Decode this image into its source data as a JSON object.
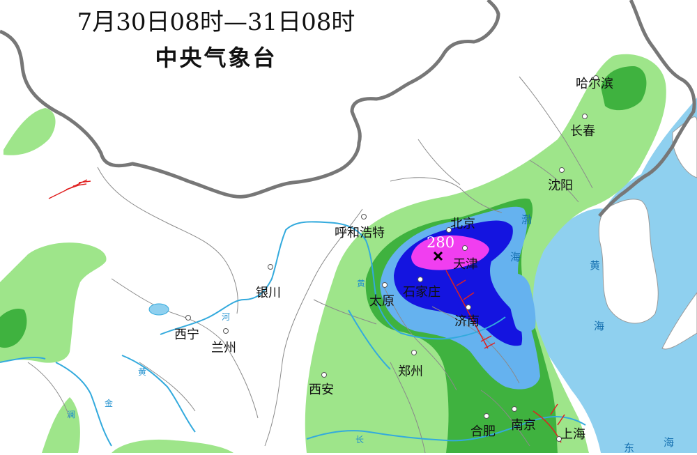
{
  "header": {
    "period": "7月30日08时—31日08时",
    "issuer": "中央气象台"
  },
  "max_value": "280",
  "cities": [
    {
      "name": "哈尔滨"
    },
    {
      "name": "长春"
    },
    {
      "name": "沈阳"
    },
    {
      "name": "北京"
    },
    {
      "name": "天津"
    },
    {
      "name": "呼和浩特"
    },
    {
      "name": "石家庄"
    },
    {
      "name": "太原"
    },
    {
      "name": "济南"
    },
    {
      "name": "银川"
    },
    {
      "name": "西宁"
    },
    {
      "name": "兰州"
    },
    {
      "name": "郑州"
    },
    {
      "name": "西安"
    },
    {
      "name": "合肥"
    },
    {
      "name": "南京"
    },
    {
      "name": "上海"
    }
  ],
  "sea_labels": [
    "渤",
    "海",
    "黄",
    "海",
    "东",
    "海"
  ],
  "river_labels": [
    "黄",
    "河",
    "黄",
    "金",
    "澜",
    "长"
  ],
  "colors": {
    "light_green": "#9ee58a",
    "green": "#3fb23f",
    "light_blue": "#65b2ef",
    "blue": "#1414e0",
    "magenta": "#f13ef0",
    "sea": "#8fd0ef",
    "border": "#7a7a7a",
    "river": "#33aadd",
    "front": "#e02020"
  }
}
